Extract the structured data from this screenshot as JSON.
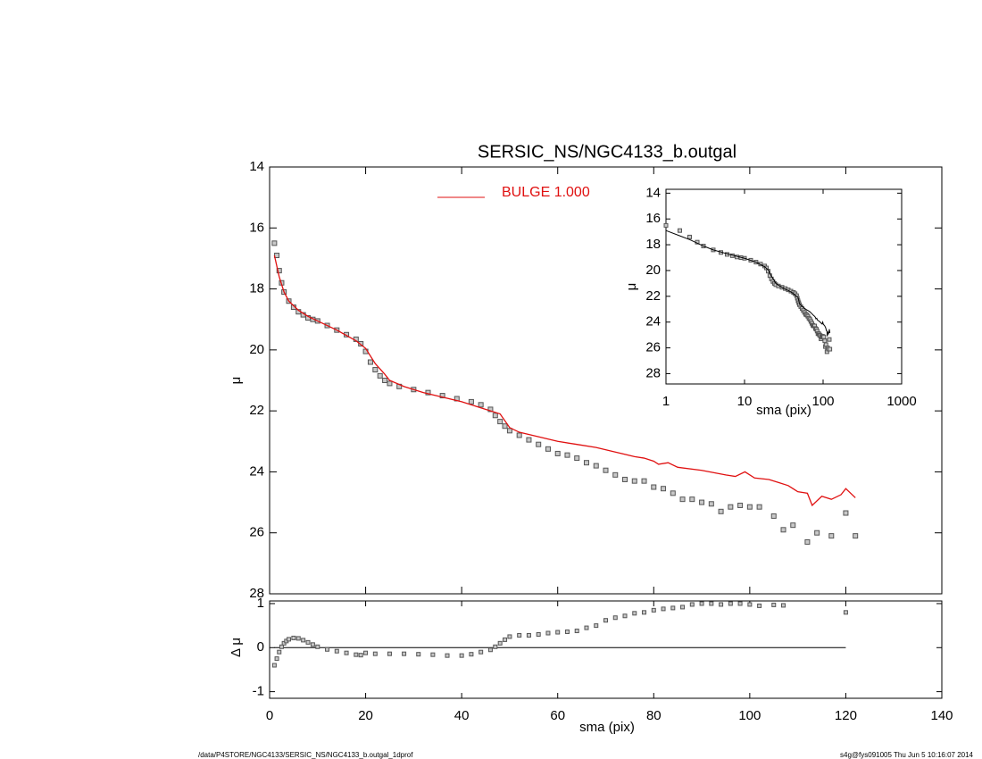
{
  "chart_data": [
    {
      "type": "scatter",
      "title": "SERSIC_NS/NGC4133_b.outgal",
      "ylabel": "μ",
      "xlim": [
        0,
        140
      ],
      "xticks": [
        0,
        20,
        40,
        60,
        80,
        100,
        120,
        140
      ],
      "ylim": [
        28,
        14
      ],
      "yticks": [
        14,
        16,
        18,
        20,
        22,
        24,
        26,
        28
      ],
      "series": [
        {
          "style": "points",
          "color": "#555555",
          "x": [
            1,
            1.5,
            2,
            2.5,
            3,
            4,
            5,
            6,
            7,
            8,
            9,
            10,
            12,
            14,
            16,
            18,
            19,
            20,
            21,
            22,
            23,
            24,
            25,
            27,
            30,
            33,
            36,
            39,
            42,
            44,
            46,
            47,
            48,
            49,
            50,
            52,
            54,
            56,
            58,
            60,
            62,
            64,
            66,
            68,
            70,
            72,
            74,
            76,
            78,
            80,
            82,
            84,
            86,
            88,
            90,
            92,
            94,
            96,
            98,
            100,
            102,
            105,
            107,
            109,
            112,
            114,
            117,
            120,
            122
          ],
          "values": [
            16.5,
            16.9,
            17.4,
            17.8,
            18.1,
            18.4,
            18.6,
            18.75,
            18.85,
            18.95,
            19.0,
            19.05,
            19.2,
            19.35,
            19.5,
            19.65,
            19.8,
            20.05,
            20.4,
            20.65,
            20.85,
            21.0,
            21.1,
            21.2,
            21.3,
            21.4,
            21.5,
            21.6,
            21.7,
            21.8,
            21.95,
            22.15,
            22.35,
            22.5,
            22.65,
            22.8,
            22.95,
            23.1,
            23.25,
            23.4,
            23.45,
            23.55,
            23.7,
            23.8,
            23.95,
            24.1,
            24.25,
            24.3,
            24.3,
            24.5,
            24.55,
            24.7,
            24.9,
            24.9,
            25.0,
            25.05,
            25.3,
            25.15,
            25.1,
            25.15,
            25.15,
            25.45,
            25.9,
            25.75,
            26.3,
            26.0,
            26.1,
            25.35,
            26.1
          ]
        },
        {
          "style": "line",
          "name": "BULGE  1.000",
          "color": "#e01010",
          "x": [
            1,
            2,
            3,
            4,
            6,
            8,
            10,
            14,
            18,
            20,
            22,
            24,
            25,
            28,
            32,
            36,
            40,
            44,
            48,
            50,
            52,
            56,
            60,
            64,
            68,
            72,
            76,
            78,
            80,
            81,
            83,
            85,
            90,
            95,
            97,
            99,
            101,
            104,
            106,
            108,
            110,
            112,
            113,
            115,
            117,
            119,
            120,
            122
          ],
          "values": [
            16.9,
            17.6,
            18.1,
            18.4,
            18.7,
            18.9,
            19.05,
            19.35,
            19.7,
            19.95,
            20.45,
            20.8,
            21.0,
            21.2,
            21.4,
            21.55,
            21.7,
            21.9,
            22.1,
            22.55,
            22.7,
            22.85,
            23.0,
            23.1,
            23.2,
            23.35,
            23.5,
            23.55,
            23.65,
            23.75,
            23.7,
            23.85,
            23.95,
            24.1,
            24.15,
            24.0,
            24.2,
            24.25,
            24.35,
            24.45,
            24.65,
            24.7,
            25.1,
            24.8,
            24.9,
            24.75,
            24.55,
            24.85
          ]
        }
      ]
    },
    {
      "type": "scatter",
      "ylabel": "Δ μ",
      "xlabel": "sma (pix)",
      "xlim": [
        0,
        140
      ],
      "xticks": [
        0,
        20,
        40,
        60,
        80,
        100,
        120,
        140
      ],
      "ylim": [
        -1.15,
        1.06
      ],
      "yticks": [
        -1,
        0,
        1
      ],
      "color": "#555555",
      "x": [
        1,
        1.5,
        2,
        2.5,
        3,
        3.5,
        4,
        5,
        6,
        7,
        8,
        9,
        10,
        12,
        14,
        16,
        18,
        19,
        20,
        22,
        25,
        28,
        31,
        34,
        37,
        40,
        42,
        44,
        46,
        47,
        48,
        49,
        50,
        52,
        54,
        56,
        58,
        60,
        62,
        64,
        66,
        68,
        70,
        72,
        74,
        76,
        78,
        80,
        82,
        84,
        86,
        88,
        90,
        92,
        94,
        96,
        98,
        100,
        102,
        105,
        107,
        120
      ],
      "values": [
        -0.4,
        -0.25,
        -0.1,
        0.02,
        0.1,
        0.15,
        0.19,
        0.22,
        0.21,
        0.17,
        0.12,
        0.07,
        0.02,
        -0.04,
        -0.08,
        -0.12,
        -0.16,
        -0.17,
        -0.12,
        -0.14,
        -0.14,
        -0.14,
        -0.15,
        -0.16,
        -0.18,
        -0.18,
        -0.15,
        -0.1,
        -0.05,
        0.02,
        0.1,
        0.18,
        0.25,
        0.28,
        0.28,
        0.3,
        0.33,
        0.35,
        0.36,
        0.38,
        0.45,
        0.5,
        0.62,
        0.68,
        0.72,
        0.78,
        0.8,
        0.85,
        0.88,
        0.9,
        0.92,
        0.98,
        1.0,
        1.0,
        0.98,
        1.0,
        1.0,
        0.98,
        0.95,
        0.97,
        0.96,
        0.8
      ]
    },
    {
      "type": "scatter",
      "xscale": "log",
      "ylabel": "μ",
      "xlabel": "sma (pix)",
      "xlim": [
        1,
        1000
      ],
      "xticks": [
        1,
        10,
        100,
        1000
      ],
      "ylim": [
        28.8,
        13.7
      ],
      "yticks": [
        14,
        16,
        18,
        20,
        22,
        24,
        26,
        28
      ],
      "model_color": "#000000"
    }
  ],
  "footer": {
    "left": "/data/P4STORE/NGC4133/SERSIC_NS/NGC4133_b.outgal_1dprof",
    "right": "s4g@fys091005  Thu Jun  5 10:16:07 2014"
  }
}
